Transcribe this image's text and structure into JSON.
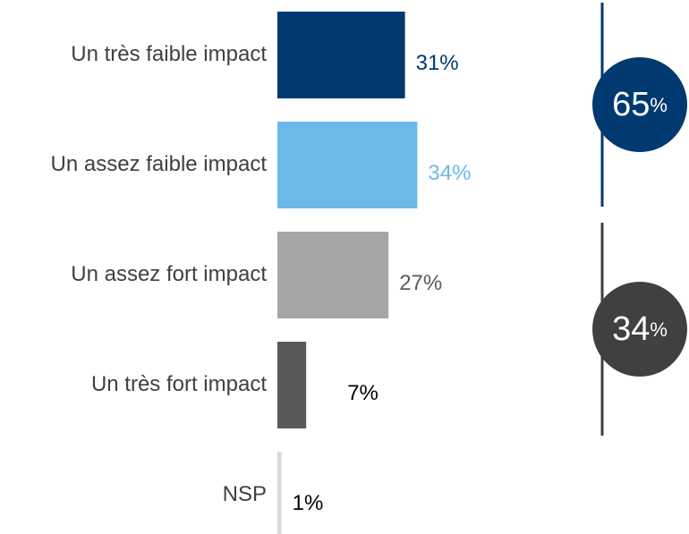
{
  "chart_data": {
    "type": "bar",
    "categories": [
      "Un très faible impact",
      "Un assez faible impact",
      "Un assez fort impact",
      "Un très fort impact",
      "NSP"
    ],
    "values": [
      31,
      34,
      27,
      7,
      1
    ],
    "value_labels": [
      "31%",
      "34%",
      "27%",
      "7%",
      "1%"
    ],
    "colors": [
      "#003a70",
      "#6bb9e8",
      "#a6a6a6",
      "#595959",
      "#d9d9d9"
    ],
    "value_label_colors": [
      "#003a70",
      "#6bb9e8",
      "#595959",
      "#000000",
      "#000000"
    ],
    "xlim": [
      0,
      100
    ],
    "summaries": [
      {
        "value": 65,
        "unit": "%",
        "color": "#003a70"
      },
      {
        "value": 34,
        "unit": "%",
        "color": "#404040"
      }
    ]
  }
}
